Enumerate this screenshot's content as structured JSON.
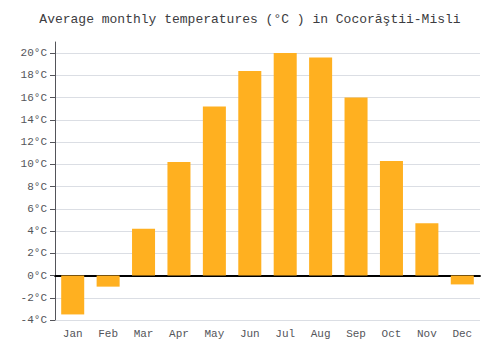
{
  "chart_data": {
    "type": "bar",
    "title": "Average monthly temperatures (°C ) in Cocorăştii-Misli",
    "categories": [
      "Jan",
      "Feb",
      "Mar",
      "Apr",
      "May",
      "Jun",
      "Jul",
      "Aug",
      "Sep",
      "Oct",
      "Nov",
      "Dec"
    ],
    "values": [
      -3.5,
      -1.0,
      4.2,
      10.2,
      15.2,
      18.4,
      20.0,
      19.6,
      16.0,
      10.3,
      4.7,
      -0.8
    ],
    "color": "#FFB020",
    "ylim": [
      -4,
      21
    ],
    "yticks": [
      {
        "value": -4,
        "label": "-4°C"
      },
      {
        "value": -2,
        "label": "-2°C"
      },
      {
        "value": 0,
        "label": "0°C"
      },
      {
        "value": 2,
        "label": "2°C"
      },
      {
        "value": 4,
        "label": "4°C"
      },
      {
        "value": 6,
        "label": "6°C"
      },
      {
        "value": 8,
        "label": "8°C"
      },
      {
        "value": 10,
        "label": "10°C"
      },
      {
        "value": 12,
        "label": "12°C"
      },
      {
        "value": 14,
        "label": "14°C"
      },
      {
        "value": 16,
        "label": "16°C"
      },
      {
        "value": 18,
        "label": "18°C"
      },
      {
        "value": 20,
        "label": "20°C"
      }
    ],
    "grid": true
  }
}
